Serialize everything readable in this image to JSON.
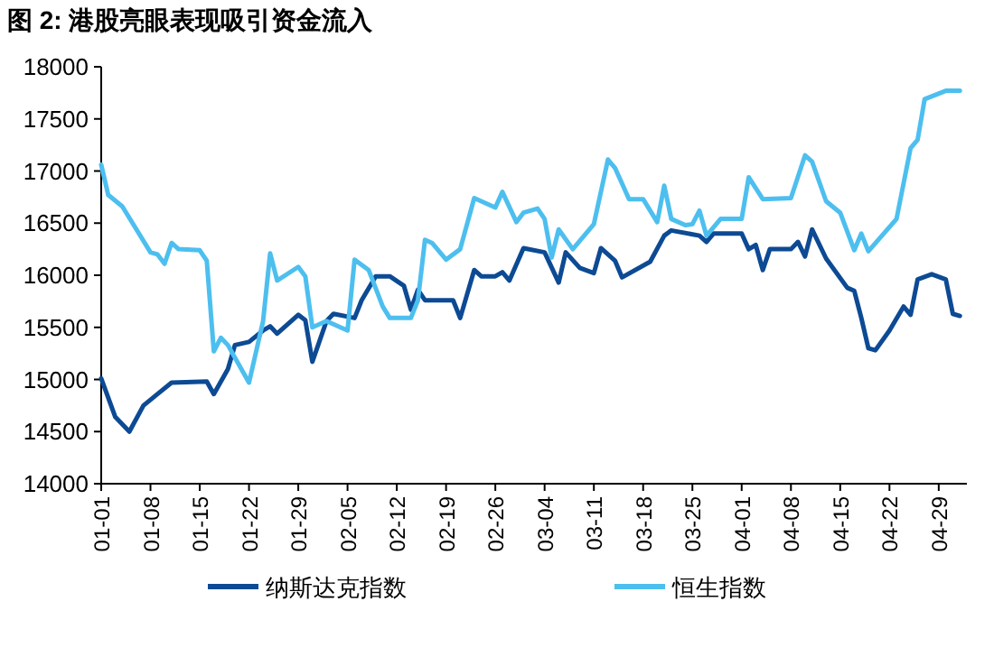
{
  "chart_data": {
    "type": "line",
    "title": "图 2:  港股亮眼表现吸引资金流入",
    "x": [
      "--01-01",
      "--01-03",
      "--01-05",
      "--01-07",
      "--01-09",
      "--01-11",
      "--01-16",
      "--01-17",
      "--01-19",
      "--01-20",
      "--01-22",
      "--01-24",
      "--01-25",
      "--01-26",
      "--01-29",
      "--01-30",
      "--01-31",
      "--02-02",
      "--02-03",
      "--02-06",
      "--02-07",
      "--02-09",
      "--02-11",
      "--02-13",
      "--02-14",
      "--02-15",
      "--02-16",
      "--02-20",
      "--02-21",
      "--02-23",
      "--02-24",
      "--02-26",
      "--02-27",
      "--02-28",
      "--03-01",
      "--03-04",
      "--03-06",
      "--03-07",
      "--03-09",
      "--03-11",
      "--03-12",
      "--03-14",
      "--03-15",
      "--03-19",
      "--03-21",
      "--03-22",
      "--03-26",
      "--03-27",
      "--03-28",
      "--04-01",
      "--04-02",
      "--04-03",
      "--04-04",
      "--04-05",
      "--04-08",
      "--04-09",
      "--04-10",
      "--04-11",
      "--04-13",
      "--04-16",
      "--04-17",
      "--04-18",
      "--04-19",
      "--04-20",
      "--04-22",
      "--04-24",
      "--04-25",
      "--04-26",
      "--04-28",
      "--04-30",
      "--05-01",
      "--05-02"
    ],
    "series": [
      {
        "name": "纳斯达克指数",
        "color": "#0d4a94",
        "values": [
          15010,
          14640,
          14500,
          14750,
          14860,
          14970,
          14980,
          14860,
          15100,
          15330,
          15360,
          15470,
          15510,
          15440,
          15620,
          15570,
          15170,
          15560,
          15630,
          15590,
          15760,
          15990,
          15990,
          15900,
          15670,
          15860,
          15760,
          15760,
          15590,
          16050,
          15990,
          15990,
          16030,
          15950,
          16260,
          16220,
          15930,
          16220,
          16070,
          16020,
          16260,
          16140,
          15980,
          16130,
          16380,
          16430,
          16380,
          16320,
          16400,
          16400,
          16250,
          16290,
          16050,
          16250,
          16250,
          16320,
          16180,
          16440,
          16160,
          15880,
          15850,
          15590,
          15300,
          15280,
          15470,
          15700,
          15620,
          15960,
          16010,
          15960,
          15630,
          15610
        ]
      },
      {
        "name": "恒生指数",
        "color": "#4dbfef",
        "x": [
          "--01-01",
          "--01-02",
          "--01-04",
          "--01-08",
          "--01-09",
          "--01-10",
          "--01-11",
          "--01-12",
          "--01-15",
          "--01-16",
          "--01-17",
          "--01-18",
          "--01-19",
          "--01-22",
          "--01-24",
          "--01-25",
          "--01-26",
          "--01-29",
          "--01-30",
          "--01-31",
          "--02-02",
          "--02-05",
          "--02-06",
          "--02-08",
          "--02-10",
          "--02-11",
          "--02-14",
          "--02-15",
          "--02-16",
          "--02-17",
          "--02-19",
          "--02-21",
          "--02-23",
          "--02-26",
          "--02-27",
          "--02-29",
          "--03-01",
          "--03-03",
          "--03-04",
          "--03-05",
          "--03-06",
          "--03-08",
          "--03-11",
          "--03-13",
          "--03-14",
          "--03-16",
          "--03-18",
          "--03-20",
          "--03-21",
          "--03-22",
          "--03-24",
          "--03-25",
          "--03-26",
          "--03-27",
          "--03-29",
          "--04-01",
          "--04-02",
          "--04-04",
          "--04-08",
          "--04-10",
          "--04-11",
          "--04-13",
          "--04-15",
          "--04-17",
          "--04-18",
          "--04-19",
          "--04-23",
          "--04-25",
          "--04-26",
          "--04-27",
          "--04-30",
          "--05-02"
        ],
        "values": [
          17060,
          16770,
          16660,
          16220,
          16200,
          16110,
          16310,
          16250,
          16240,
          16140,
          15270,
          15400,
          15330,
          14970,
          15560,
          16210,
          15950,
          16080,
          15990,
          15500,
          15560,
          15470,
          16150,
          16050,
          15700,
          15590,
          15590,
          15760,
          16340,
          16310,
          16150,
          16250,
          16740,
          16650,
          16800,
          16510,
          16600,
          16640,
          16540,
          16170,
          16440,
          16250,
          16490,
          17110,
          17030,
          16730,
          16730,
          16510,
          16860,
          16540,
          16480,
          16490,
          16620,
          16380,
          16540,
          16540,
          16940,
          16730,
          16740,
          17150,
          17090,
          16710,
          16600,
          16240,
          16400,
          16230,
          16540,
          17220,
          17300,
          17690,
          17770,
          17770
        ]
      }
    ],
    "xlim": [
      "--01-01",
      "--05-03"
    ],
    "xticks": [
      {
        "value": "--01-01",
        "label": "01-01"
      },
      {
        "value": "--01-08",
        "label": "01-08"
      },
      {
        "value": "--01-15",
        "label": "01-15"
      },
      {
        "value": "--01-22",
        "label": "01-22"
      },
      {
        "value": "--01-29",
        "label": "01-29"
      },
      {
        "value": "--02-05",
        "label": "02-05"
      },
      {
        "value": "--02-12",
        "label": "02-12"
      },
      {
        "value": "--02-19",
        "label": "02-19"
      },
      {
        "value": "--02-26",
        "label": "02-26"
      },
      {
        "value": "--03-04",
        "label": "03-04"
      },
      {
        "value": "--03-11",
        "label": "03-11"
      },
      {
        "value": "--03-18",
        "label": "03-18"
      },
      {
        "value": "--03-25",
        "label": "03-25"
      },
      {
        "value": "--04-01",
        "label": "04-01"
      },
      {
        "value": "--04-08",
        "label": "04-08"
      },
      {
        "value": "--04-15",
        "label": "04-15"
      },
      {
        "value": "--04-22",
        "label": "04-22"
      },
      {
        "value": "--04-29",
        "label": "04-29"
      }
    ],
    "ylim": [
      14000,
      18000
    ],
    "yticks": [
      14000,
      14500,
      15000,
      15500,
      16000,
      16500,
      17000,
      17500,
      18000
    ],
    "grid": false,
    "legend": "bottom",
    "marker": "none",
    "line_style": "solid"
  }
}
